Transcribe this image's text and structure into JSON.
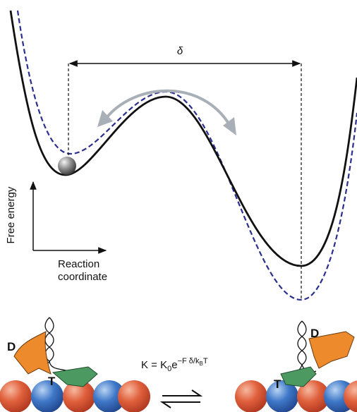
{
  "energy_diagram": {
    "distance_label": "δ",
    "y_axis_label": "Free energy",
    "x_axis_label": [
      "Reaction",
      "coordinate"
    ]
  },
  "left_state": {
    "d_label": "D",
    "t_label": "T"
  },
  "right_state": {
    "d_label": "D",
    "t_label": "T"
  },
  "equation": {
    "lhs": "K = K",
    "k_sub": "0",
    "base": "e",
    "exponent": "−F δ/k",
    "exp_sub": "B",
    "exp_tail": "T"
  }
}
